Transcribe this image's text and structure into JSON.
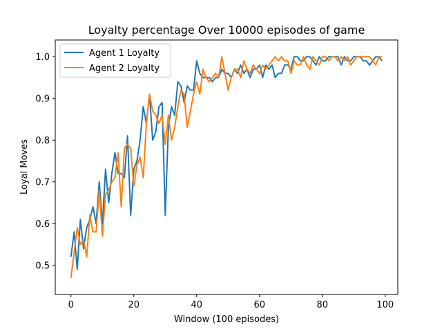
{
  "chart_data": {
    "type": "line",
    "title": "Loyalty percentage Over 10000 episodes of game",
    "xlabel": "Window (100 episodes)",
    "ylabel": "Loyal Moves",
    "xlim": [
      -5,
      104
    ],
    "ylim": [
      0.43,
      1.04
    ],
    "xticks": [
      0,
      20,
      40,
      60,
      80,
      100
    ],
    "yticks": [
      0.5,
      0.6,
      0.7,
      0.8,
      0.9,
      1.0
    ],
    "xtick_labels": [
      "0",
      "20",
      "40",
      "60",
      "80",
      "100"
    ],
    "ytick_labels": [
      "0.5",
      "0.6",
      "0.7",
      "0.8",
      "0.9",
      "1.0"
    ],
    "legend": {
      "placement": "top-left"
    },
    "grid": false,
    "series": [
      {
        "name": "Agent 1 Loyalty",
        "color": "#1f77b4",
        "values": [
          0.52,
          0.58,
          0.49,
          0.61,
          0.54,
          0.59,
          0.61,
          0.64,
          0.6,
          0.7,
          0.6,
          0.73,
          0.65,
          0.72,
          0.77,
          0.72,
          0.72,
          0.71,
          0.81,
          0.62,
          0.73,
          0.75,
          0.8,
          0.88,
          0.84,
          0.91,
          0.8,
          0.82,
          0.88,
          0.89,
          0.62,
          0.83,
          0.88,
          0.86,
          0.94,
          0.93,
          0.89,
          0.93,
          0.92,
          0.92,
          0.99,
          0.96,
          0.95,
          0.95,
          0.95,
          0.94,
          0.95,
          0.95,
          0.97,
          0.96,
          0.96,
          0.95,
          0.97,
          0.96,
          0.98,
          0.96,
          0.97,
          0.95,
          0.97,
          0.97,
          0.98,
          0.95,
          0.98,
          0.97,
          0.98,
          0.95,
          0.96,
          0.96,
          0.98,
          0.98,
          0.97,
          1.0,
          1.0,
          0.99,
          0.99,
          1.0,
          1.0,
          0.99,
          0.98,
          1.0,
          0.99,
          0.99,
          1.0,
          1.0,
          1.0,
          1.0,
          0.98,
          1.0,
          0.99,
          0.99,
          1.0,
          1.0,
          1.0,
          0.99,
          0.99,
          0.98,
          0.99,
          1.0,
          1.0,
          0.99
        ]
      },
      {
        "name": "Agent 2 Loyalty",
        "color": "#ff7f0e",
        "values": [
          0.47,
          0.53,
          0.59,
          0.55,
          0.56,
          0.52,
          0.62,
          0.58,
          0.58,
          0.68,
          0.57,
          0.67,
          0.68,
          0.7,
          0.71,
          0.77,
          0.64,
          0.78,
          0.79,
          0.78,
          0.69,
          0.74,
          0.76,
          0.71,
          0.84,
          0.91,
          0.87,
          0.86,
          0.84,
          0.86,
          0.79,
          0.86,
          0.8,
          0.83,
          0.88,
          0.92,
          0.91,
          0.83,
          0.87,
          0.91,
          0.94,
          0.91,
          0.97,
          0.95,
          0.94,
          0.95,
          0.96,
          0.95,
          1.0,
          0.96,
          0.92,
          0.95,
          0.97,
          0.97,
          0.95,
          0.99,
          0.97,
          0.96,
          0.98,
          0.97,
          0.96,
          0.98,
          0.97,
          0.98,
          0.99,
          1.0,
          0.99,
          1.0,
          0.99,
          0.99,
          0.96,
          0.99,
          0.98,
          0.98,
          1.0,
          0.98,
          0.97,
          1.0,
          0.99,
          0.98,
          1.0,
          1.0,
          0.99,
          1.0,
          1.0,
          0.99,
          1.0,
          0.99,
          1.0,
          0.98,
          0.99,
          1.0,
          1.0,
          1.0,
          1.0,
          1.0,
          0.99,
          0.98,
          1.0,
          1.0
        ]
      }
    ]
  }
}
